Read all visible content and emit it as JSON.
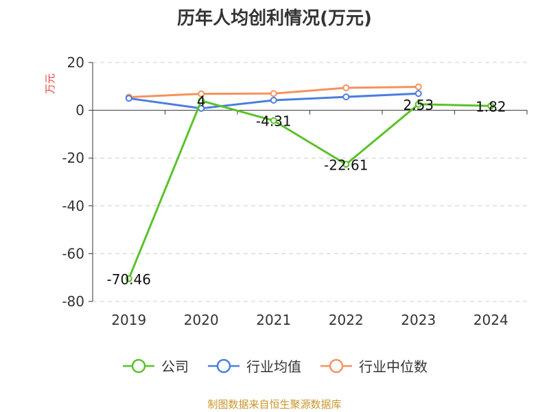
{
  "chart_data": {
    "type": "line",
    "title": "历年人均创利情况(万元)",
    "ylabel": "万元",
    "xlabel": "",
    "categories": [
      "2019",
      "2020",
      "2021",
      "2022",
      "2023",
      "2024"
    ],
    "ylim": [
      -80,
      20
    ],
    "yticks": [
      20,
      0,
      -20,
      -40,
      -60,
      -80
    ],
    "grid": true,
    "legend_position": "bottom",
    "series": [
      {
        "name": "公司",
        "color": "#5ac229",
        "values": [
          -70.46,
          4,
          -4.31,
          -22.61,
          2.53,
          1.82
        ],
        "labels": [
          "-70.46",
          "4",
          "-4.31",
          "-22.61",
          "2.53",
          "1.82"
        ]
      },
      {
        "name": "行业均值",
        "color": "#4a7de0",
        "values": [
          5,
          0.8,
          4.2,
          5.6,
          7.0,
          null
        ]
      },
      {
        "name": "行业中位数",
        "color": "#f5925e",
        "values": [
          5.5,
          6.9,
          7.0,
          9.4,
          9.8,
          null
        ]
      }
    ]
  },
  "footer": {
    "source": "制图数据来自恒生聚源数据库",
    "color": "#c8962e"
  },
  "colors": {
    "ylabel": "#e8403b",
    "grid": "#cccccc",
    "axis": "#333333"
  }
}
